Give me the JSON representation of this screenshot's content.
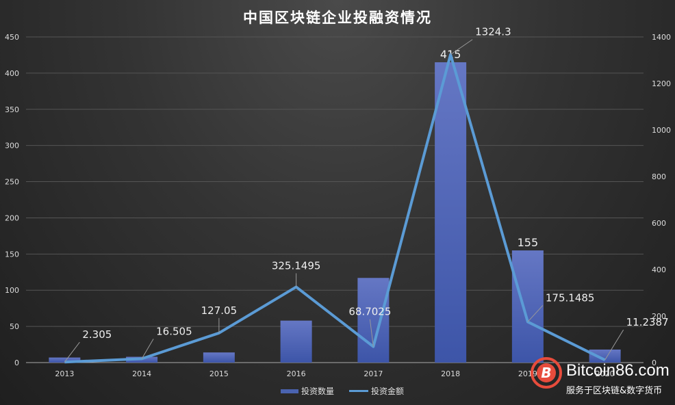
{
  "chart_data": {
    "type": "bar+line",
    "title": "中国区块链企业投融资情况",
    "categories": [
      "2013",
      "2014",
      "2015",
      "2016",
      "2017",
      "2018",
      "2019",
      "2020"
    ],
    "series": [
      {
        "name": "投资数量",
        "type": "bar",
        "axis": "left",
        "color": "#4a63b0",
        "values": [
          7,
          8,
          14,
          58,
          117,
          415,
          155,
          18
        ],
        "data_labels": [
          null,
          null,
          null,
          null,
          null,
          "415",
          "155",
          null
        ]
      },
      {
        "name": "投资金额",
        "type": "line",
        "axis": "right",
        "color": "#5b9bd5",
        "values": [
          2.305,
          16.505,
          127.05,
          325.1495,
          68.7025,
          1324.3,
          175.1485,
          11.2387
        ],
        "data_labels": [
          "2.305",
          "16.505",
          "127.05",
          "325.1495",
          "68.7025",
          "1324.3",
          "175.1485",
          "11.2387"
        ]
      }
    ],
    "y_left": {
      "min": 0,
      "max": 450,
      "step": 50,
      "ticks": [
        "0",
        "50",
        "100",
        "150",
        "200",
        "250",
        "300",
        "350",
        "400",
        "450"
      ]
    },
    "y_right": {
      "min": 0,
      "max": 1400,
      "step": 200,
      "ticks": [
        "0",
        "200",
        "400",
        "600",
        "800",
        "1000",
        "1200",
        "1400"
      ]
    },
    "grid": true,
    "legend_position": "bottom"
  },
  "legend": {
    "bar": "投资数量",
    "line": "投资金额"
  },
  "watermark": {
    "name": "Bitcoin86.com",
    "tagline": "服务于区块链&数字货币",
    "logo_glyph": "B"
  }
}
